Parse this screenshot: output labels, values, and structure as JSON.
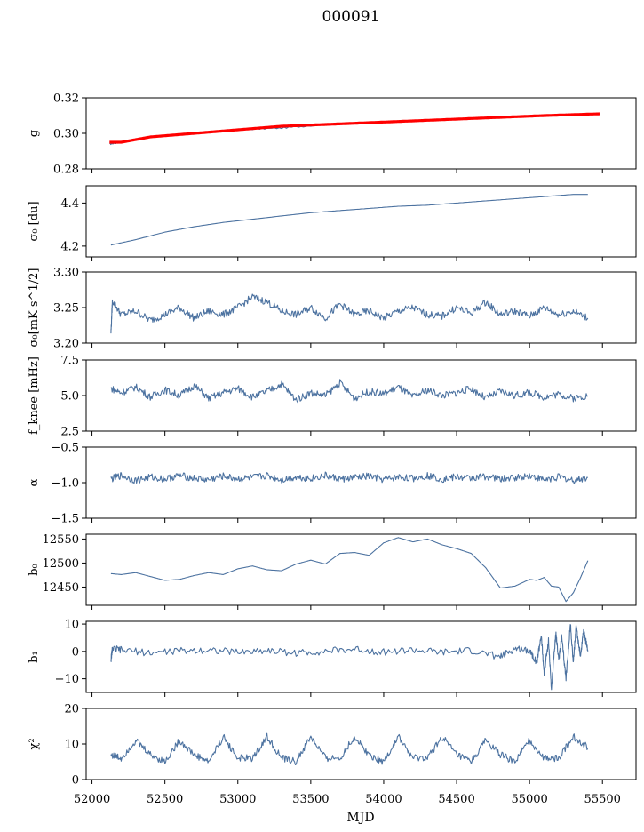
{
  "figure": {
    "title": "000091",
    "xlabel": "MJD"
  },
  "colors": {
    "series": "#4c72a0",
    "fit": "#ff0000",
    "axis": "#000000"
  },
  "chart_data": [
    {
      "type": "line",
      "ylabel": "g",
      "xlim": [
        51960,
        55730
      ],
      "ylim": [
        0.28,
        0.32
      ],
      "yticks": [
        "0.28",
        "0.30",
        "0.32"
      ],
      "series": [
        {
          "x": [
            52120,
            52200,
            52400,
            52700,
            53000,
            53300,
            53600,
            53900,
            54200,
            54500,
            54800,
            55100,
            55400
          ],
          "values": [
            0.294,
            0.295,
            0.298,
            0.3,
            0.302,
            0.303,
            0.305,
            0.306,
            0.307,
            0.308,
            0.309,
            0.31,
            0.311
          ]
        },
        {
          "x": [
            52120,
            52200,
            52400,
            52700,
            53000,
            53300,
            53600,
            53900,
            54200,
            54500,
            54800,
            55100,
            55480
          ],
          "values": [
            0.295,
            0.295,
            0.298,
            0.3,
            0.302,
            0.304,
            0.305,
            0.306,
            0.307,
            0.308,
            0.309,
            0.31,
            0.311
          ]
        }
      ]
    },
    {
      "type": "line",
      "ylabel": "σ₀ [du]",
      "xlim": [
        51960,
        55730
      ],
      "ylim": [
        4.15,
        4.48
      ],
      "yticks": [
        "4.2",
        "4.4"
      ],
      "series": [
        {
          "x": [
            52130,
            52300,
            52500,
            52700,
            52900,
            53100,
            53300,
            53500,
            53700,
            53900,
            54100,
            54300,
            54500,
            54700,
            54900,
            55100,
            55300,
            55400
          ],
          "values": [
            4.205,
            4.23,
            4.265,
            4.29,
            4.31,
            4.325,
            4.34,
            4.355,
            4.365,
            4.375,
            4.385,
            4.39,
            4.4,
            4.41,
            4.42,
            4.43,
            4.44,
            4.44
          ]
        }
      ]
    },
    {
      "type": "line",
      "ylabel": "σ₀[mK s^1/2]",
      "xlim": [
        51960,
        55730
      ],
      "ylim": [
        3.2,
        3.3
      ],
      "yticks": [
        "3.20",
        "3.25",
        "3.30"
      ],
      "series": [
        {
          "x": [
            52130,
            52140,
            52200,
            52300,
            52400,
            52500,
            52600,
            52700,
            52800,
            52900,
            53000,
            53100,
            53200,
            53300,
            53400,
            53500,
            53600,
            53700,
            53800,
            53900,
            54000,
            54100,
            54200,
            54300,
            54400,
            54500,
            54600,
            54700,
            54800,
            54900,
            55000,
            55100,
            55200,
            55300,
            55400
          ],
          "values": [
            3.215,
            3.26,
            3.24,
            3.245,
            3.232,
            3.24,
            3.25,
            3.235,
            3.245,
            3.24,
            3.25,
            3.265,
            3.258,
            3.245,
            3.24,
            3.25,
            3.235,
            3.255,
            3.24,
            3.245,
            3.235,
            3.245,
            3.25,
            3.24,
            3.238,
            3.25,
            3.242,
            3.258,
            3.24,
            3.245,
            3.238,
            3.25,
            3.24,
            3.245,
            3.235
          ]
        }
      ]
    },
    {
      "type": "line",
      "ylabel": "f_knee [mHz]",
      "xlim": [
        51960,
        55730
      ],
      "ylim": [
        2.5,
        7.5
      ],
      "yticks": [
        "2.5",
        "5.0",
        "7.5"
      ],
      "series": [
        {
          "x": [
            52130,
            52200,
            52300,
            52400,
            52500,
            52600,
            52700,
            52800,
            52900,
            53000,
            53100,
            53200,
            53300,
            53400,
            53500,
            53600,
            53700,
            53800,
            53900,
            54000,
            54100,
            54200,
            54300,
            54400,
            54500,
            54600,
            54700,
            54800,
            54900,
            55000,
            55100,
            55200,
            55300,
            55400
          ],
          "values": [
            5.5,
            5.2,
            5.6,
            4.9,
            5.4,
            5.0,
            5.7,
            4.8,
            5.2,
            5.5,
            4.9,
            5.3,
            5.8,
            4.7,
            5.2,
            5.0,
            5.9,
            4.8,
            5.3,
            5.1,
            5.6,
            4.9,
            5.4,
            5.0,
            5.2,
            5.5,
            4.8,
            5.3,
            5.0,
            5.2,
            4.9,
            5.1,
            4.8,
            5.0
          ]
        }
      ]
    },
    {
      "type": "line",
      "ylabel": "α",
      "xlim": [
        51960,
        55730
      ],
      "ylim": [
        -1.5,
        -0.5
      ],
      "yticks": [
        "−1.5",
        "−1.0",
        "−0.5"
      ],
      "series": [
        {
          "x": [
            52130,
            52200,
            52300,
            52400,
            52500,
            52600,
            52700,
            52800,
            52900,
            53000,
            53100,
            53200,
            53300,
            53400,
            53500,
            53600,
            53700,
            53800,
            53900,
            54000,
            54100,
            54200,
            54300,
            54400,
            54500,
            54600,
            54700,
            54800,
            54900,
            55000,
            55100,
            55200,
            55300,
            55400
          ],
          "values": [
            -0.95,
            -0.9,
            -0.97,
            -0.92,
            -0.95,
            -0.9,
            -0.94,
            -0.96,
            -0.91,
            -0.95,
            -0.93,
            -0.9,
            -0.96,
            -0.92,
            -0.94,
            -0.9,
            -0.95,
            -0.93,
            -0.91,
            -0.96,
            -0.92,
            -0.94,
            -0.9,
            -0.95,
            -0.92,
            -0.94,
            -0.91,
            -0.95,
            -0.93,
            -0.9,
            -0.96,
            -0.92,
            -0.97,
            -0.93
          ]
        }
      ]
    },
    {
      "type": "line",
      "ylabel": "b₀",
      "xlim": [
        51960,
        55730
      ],
      "ylim": [
        12412,
        12560
      ],
      "yticks": [
        "12450",
        "12500",
        "12550"
      ],
      "series": [
        {
          "x": [
            52130,
            52200,
            52300,
            52400,
            52500,
            52600,
            52700,
            52800,
            52900,
            53000,
            53100,
            53200,
            53300,
            53400,
            53500,
            53600,
            53700,
            53800,
            53900,
            54000,
            54100,
            54200,
            54300,
            54400,
            54500,
            54600,
            54700,
            54800,
            54900,
            55000,
            55050,
            55100,
            55150,
            55200,
            55250,
            55300,
            55350,
            55400
          ],
          "values": [
            12478,
            12476,
            12480,
            12472,
            12464,
            12466,
            12474,
            12480,
            12476,
            12488,
            12494,
            12486,
            12484,
            12498,
            12506,
            12498,
            12520,
            12522,
            12516,
            12542,
            12553,
            12544,
            12550,
            12538,
            12530,
            12520,
            12490,
            12448,
            12452,
            12466,
            12464,
            12470,
            12452,
            12450,
            12420,
            12438,
            12470,
            12505
          ]
        }
      ]
    },
    {
      "type": "line",
      "ylabel": "b₁",
      "xlim": [
        51960,
        55730
      ],
      "ylim": [
        -15,
        11
      ],
      "yticks": [
        "−10",
        "0",
        "10"
      ],
      "series": [
        {
          "x": [
            52130,
            52140,
            52200,
            52400,
            52600,
            52800,
            53000,
            53200,
            53400,
            53600,
            53800,
            54000,
            54200,
            54400,
            54600,
            54800,
            54900,
            55000,
            55050,
            55080,
            55100,
            55130,
            55150,
            55180,
            55200,
            55220,
            55250,
            55280,
            55300,
            55320,
            55350,
            55370,
            55400
          ],
          "values": [
            -3,
            1,
            0.5,
            -0.5,
            0.2,
            0.6,
            -0.3,
            0.4,
            -0.6,
            0.1,
            0.8,
            -0.2,
            0.5,
            -0.4,
            0.3,
            -2,
            1,
            0.5,
            -4,
            6,
            -8,
            4,
            -14,
            7,
            -3,
            5,
            -10,
            10,
            -4,
            9,
            -2,
            8,
            0
          ]
        }
      ]
    },
    {
      "type": "line",
      "ylabel": "χ²",
      "xlim": [
        51960,
        55730
      ],
      "ylim": [
        0,
        20
      ],
      "yticks": [
        "0",
        "10",
        "20"
      ],
      "series": [
        {
          "x": [
            52130,
            52200,
            52300,
            52400,
            52500,
            52600,
            52700,
            52800,
            52900,
            53000,
            53100,
            53200,
            53300,
            53400,
            53500,
            53600,
            53700,
            53800,
            53900,
            54000,
            54100,
            54200,
            54300,
            54400,
            54500,
            54600,
            54700,
            54800,
            54900,
            55000,
            55100,
            55200,
            55300,
            55400
          ],
          "values": [
            7,
            6,
            11,
            7,
            5,
            11,
            7,
            5,
            12,
            6,
            6,
            12,
            6,
            5,
            12,
            6,
            6,
            12,
            7,
            5,
            12,
            6,
            6,
            12,
            7,
            5,
            11,
            7,
            5,
            11,
            6,
            6,
            12,
            9
          ]
        }
      ]
    }
  ],
  "xticks": [
    "52000",
    "52500",
    "53000",
    "53500",
    "54000",
    "54500",
    "55000",
    "55500"
  ]
}
